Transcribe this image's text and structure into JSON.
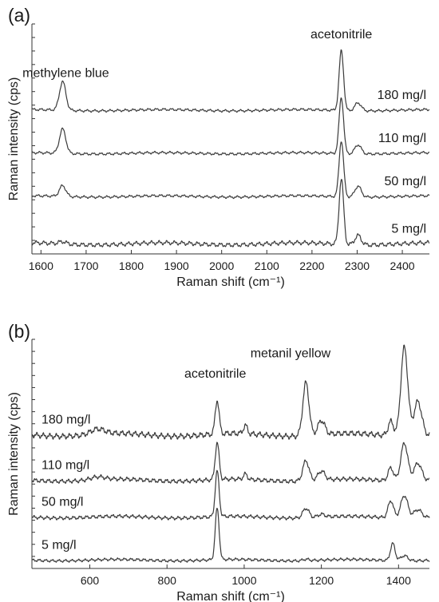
{
  "chart_data": [
    {
      "type": "line",
      "panel_label": "(a)",
      "xlabel": "Raman shift (cm⁻¹)",
      "ylabel": "Raman intensity (cps)",
      "xlim": [
        1580,
        2460
      ],
      "xticks": [
        1600,
        1700,
        1800,
        1900,
        2000,
        2100,
        2200,
        2300,
        2400
      ],
      "grid": false,
      "label_side": "right",
      "annotations": [
        {
          "text": "methylene blue",
          "x": 1655,
          "y": 6.15
        },
        {
          "text": "acetonitrile",
          "x": 2265,
          "y": 7.5
        }
      ],
      "series": [
        {
          "name": "180 mg/l",
          "baseline": 5.0,
          "ripple": 0.03,
          "peaks": [
            [
              1648,
              1.0,
              7
            ],
            [
              2265,
              2.08,
              5
            ],
            [
              2302,
              0.28,
              7
            ]
          ]
        },
        {
          "name": "110 mg/l",
          "baseline": 3.5,
          "ripple": 0.03,
          "peaks": [
            [
              1648,
              0.85,
              7
            ],
            [
              2265,
              1.95,
              5
            ],
            [
              2302,
              0.32,
              7
            ]
          ]
        },
        {
          "name": "50 mg/l",
          "baseline": 2.0,
          "ripple": 0.03,
          "peaks": [
            [
              1648,
              0.38,
              7
            ],
            [
              2265,
              1.95,
              5
            ],
            [
              2302,
              0.38,
              7
            ]
          ]
        },
        {
          "name": "5 mg/l",
          "baseline": 0.35,
          "ripple": 0.05,
          "peaks": [
            [
              1648,
              0.08,
              8
            ],
            [
              2265,
              2.28,
              5
            ],
            [
              2302,
              0.33,
              7
            ]
          ]
        }
      ]
    },
    {
      "type": "line",
      "panel_label": "(b)",
      "xlabel": "Raman shift (cm⁻¹)",
      "ylabel": "Raman intensity (cps)",
      "xlim": [
        450,
        1480
      ],
      "xticks": [
        600,
        800,
        1000,
        1200,
        1400
      ],
      "grid": false,
      "label_side": "left",
      "annotations": [
        {
          "text": "acetonitrile",
          "x": 925,
          "y": 8.0
        },
        {
          "text": "metanil yellow",
          "x": 1120,
          "y": 8.85
        }
      ],
      "series": [
        {
          "name": "180 mg/l",
          "baseline": 5.6,
          "ripple": 0.08,
          "peaks": [
            [
              620,
              0.22,
              18
            ],
            [
              930,
              1.42,
              5
            ],
            [
              1003,
              0.35,
              5
            ],
            [
              1160,
              2.23,
              8
            ],
            [
              1200,
              0.6,
              9
            ],
            [
              1380,
              0.6,
              7
            ],
            [
              1415,
              3.73,
              9
            ],
            [
              1450,
              1.45,
              10
            ]
          ]
        },
        {
          "name": "110 mg/l",
          "baseline": 3.7,
          "ripple": 0.06,
          "peaks": [
            [
              620,
              0.12,
              18
            ],
            [
              930,
              1.55,
              5
            ],
            [
              1003,
              0.22,
              5
            ],
            [
              1160,
              0.85,
              8
            ],
            [
              1200,
              0.38,
              9
            ],
            [
              1380,
              0.55,
              7
            ],
            [
              1415,
              1.6,
              9
            ],
            [
              1450,
              0.75,
              10
            ]
          ]
        },
        {
          "name": "50 mg/l",
          "baseline": 2.15,
          "ripple": 0.05,
          "peaks": [
            [
              930,
              1.9,
              5
            ],
            [
              1160,
              0.4,
              8
            ],
            [
              1200,
              0.12,
              9
            ],
            [
              1380,
              0.72,
              7
            ],
            [
              1415,
              0.95,
              9
            ],
            [
              1450,
              0.35,
              10
            ]
          ]
        },
        {
          "name": "5 mg/l",
          "baseline": 0.35,
          "ripple": 0.04,
          "peaks": [
            [
              930,
              2.15,
              5
            ],
            [
              1160,
              0.06,
              8
            ],
            [
              1385,
              0.72,
              6
            ],
            [
              1415,
              0.22,
              9
            ]
          ]
        }
      ]
    }
  ]
}
